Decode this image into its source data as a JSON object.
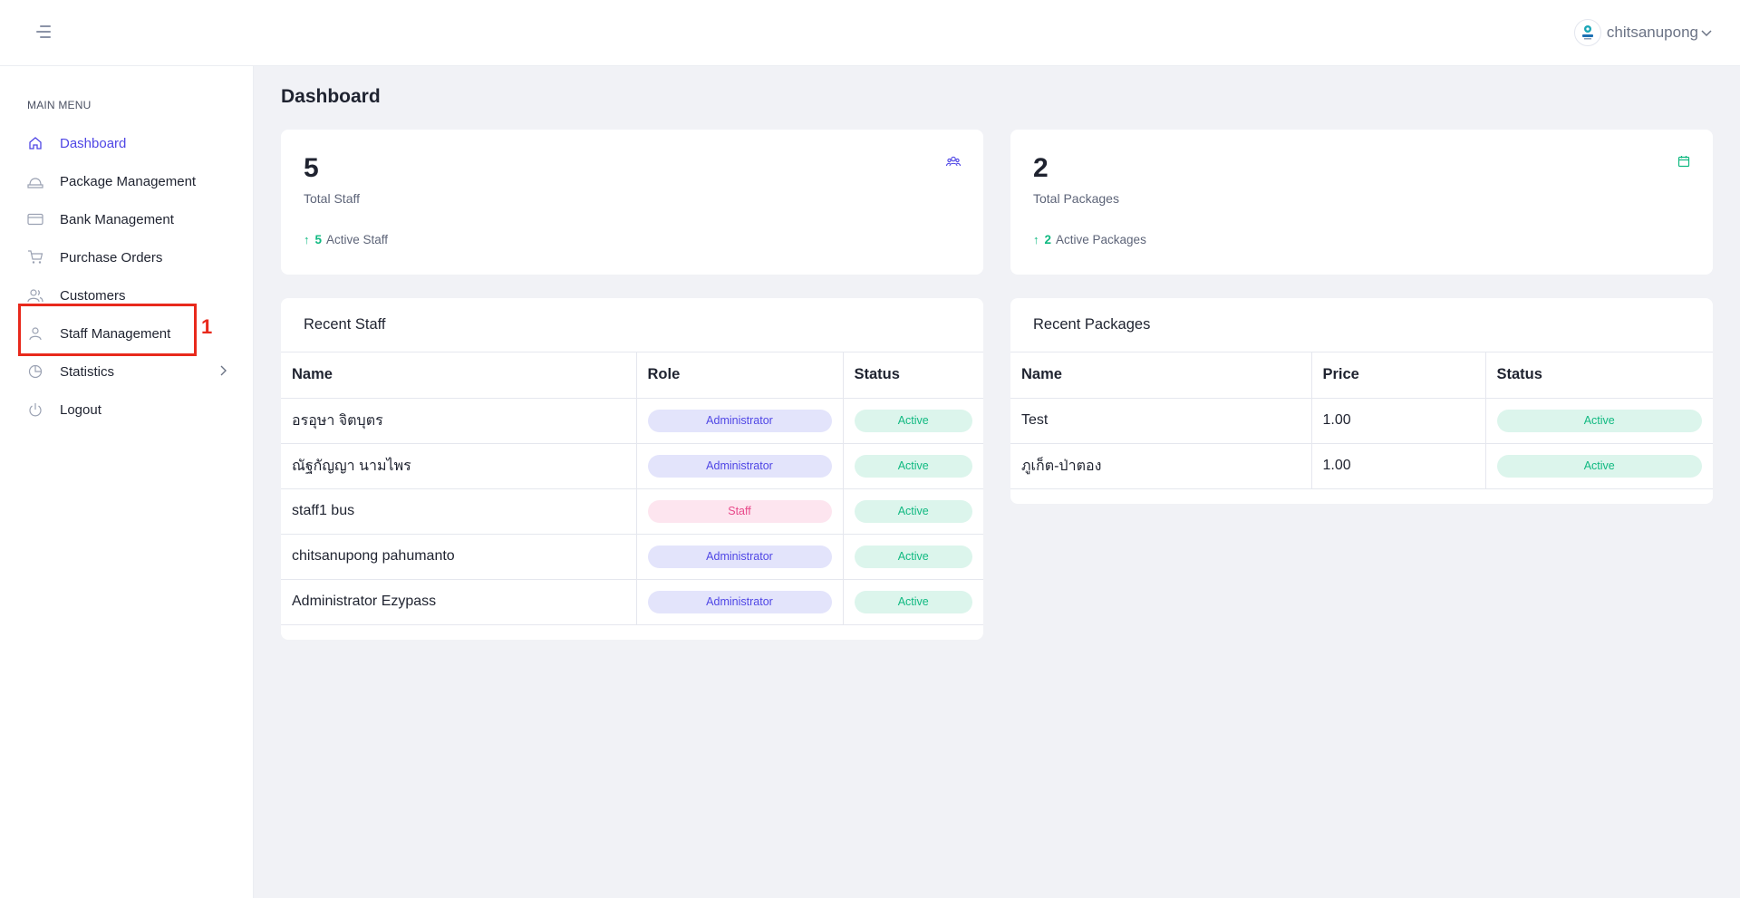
{
  "header": {
    "username": "chitsanupong"
  },
  "sidebar": {
    "menu_title": "MAIN MENU",
    "items": [
      {
        "label": "Dashboard",
        "icon": "home-icon"
      },
      {
        "label": "Package Management",
        "icon": "package-icon"
      },
      {
        "label": "Bank Management",
        "icon": "credit-card-icon"
      },
      {
        "label": "Purchase Orders",
        "icon": "cart-icon"
      },
      {
        "label": "Customers",
        "icon": "users-icon"
      },
      {
        "label": "Staff Management",
        "icon": "user-icon"
      },
      {
        "label": "Statistics",
        "icon": "pie-chart-icon"
      },
      {
        "label": "Logout",
        "icon": "power-icon"
      }
    ],
    "active_index": 0
  },
  "annotation": {
    "label": "1"
  },
  "page": {
    "title": "Dashboard"
  },
  "stats": {
    "staff": {
      "value": "5",
      "label": "Total Staff",
      "active_count": "5",
      "active_label": "Active Staff"
    },
    "packages": {
      "value": "2",
      "label": "Total Packages",
      "active_count": "2",
      "active_label": "Active Packages"
    }
  },
  "recent_staff": {
    "title": "Recent Staff",
    "columns": [
      "Name",
      "Role",
      "Status"
    ],
    "rows": [
      {
        "name": "อรอุษา จิตบุตร",
        "role": "Administrator",
        "status": "Active"
      },
      {
        "name": "ณัฐกัญญา นามไพร",
        "role": "Administrator",
        "status": "Active"
      },
      {
        "name": "staff1 bus",
        "role": "Staff",
        "status": "Active"
      },
      {
        "name": "chitsanupong pahumanto",
        "role": "Administrator",
        "status": "Active"
      },
      {
        "name": "Administrator Ezypass",
        "role": "Administrator",
        "status": "Active"
      }
    ]
  },
  "recent_packages": {
    "title": "Recent Packages",
    "columns": [
      "Name",
      "Price",
      "Status"
    ],
    "rows": [
      {
        "name": "Test",
        "price": "1.00",
        "status": "Active"
      },
      {
        "name": "ภูเก็ต-ป่าตอง",
        "price": "1.00",
        "status": "Active"
      }
    ]
  },
  "colors": {
    "accent": "#4f46e5",
    "success": "#10b981",
    "staff_pill": "#e8498a",
    "annotation": "#e8291c"
  }
}
